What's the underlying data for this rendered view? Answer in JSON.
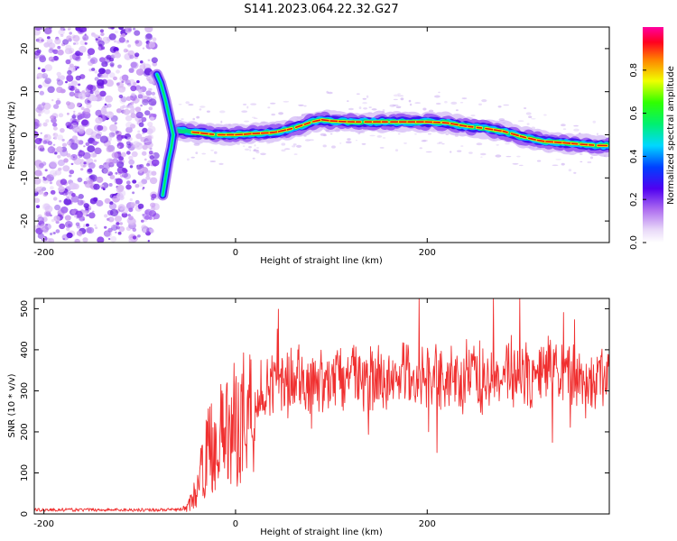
{
  "title": "S141.2023.064.22.32.G27",
  "chart_data": [
    {
      "type": "heatmap",
      "xlabel": "Height of straight line (km)",
      "ylabel": "Frequency (Hz)",
      "xlim": [
        -210,
        390
      ],
      "ylim": [
        -25,
        25
      ],
      "xticks": [
        "-200",
        "0",
        "200"
      ],
      "yticks": [
        "-20",
        "-10",
        "0",
        "10",
        "20"
      ],
      "colorbar": {
        "label": "Normalized spectral amplitude",
        "range": [
          0,
          1
        ],
        "ticks": [
          "0.0",
          "0.2",
          "0.4",
          "0.6",
          "0.8"
        ]
      },
      "ridge": {
        "x": [
          -60,
          -40,
          -20,
          0,
          20,
          40,
          60,
          80,
          90,
          100,
          120,
          140,
          160,
          180,
          200,
          220,
          240,
          260,
          280,
          300,
          320,
          340,
          360,
          380,
          390
        ],
        "y": [
          1,
          0.5,
          0,
          0,
          0.3,
          0.5,
          1.5,
          3,
          3.5,
          3.2,
          3.0,
          3.0,
          3.0,
          3.0,
          3.0,
          2.8,
          2.0,
          1.5,
          0.8,
          -0.5,
          -1.5,
          -1.8,
          -2.2,
          -2.5,
          -2.5
        ]
      },
      "branches": {
        "upper_x": [
          -82,
          -78,
          -73,
          -70,
          -67,
          -65
        ],
        "upper_y": [
          14,
          12,
          8,
          5,
          2,
          0
        ],
        "lower_x": [
          -76,
          -73,
          -70,
          -67,
          -65
        ],
        "lower_y": [
          -14,
          -10,
          -6,
          -3,
          0
        ]
      }
    },
    {
      "type": "line",
      "xlabel": "Height of straight line (km)",
      "ylabel": "SNR (10 * v/v)",
      "xlim": [
        -210,
        390
      ],
      "ylim": [
        0,
        525
      ],
      "xticks": [
        "-200",
        "0",
        "200"
      ],
      "yticks": [
        "0",
        "100",
        "200",
        "300",
        "400",
        "500"
      ],
      "envelope": {
        "x": [
          -210,
          -60,
          -50,
          -40,
          -30,
          -20,
          -10,
          0,
          10,
          20,
          30,
          40,
          60,
          80,
          100,
          120,
          150,
          180,
          200,
          230,
          260,
          290,
          300,
          320,
          340,
          360,
          390
        ],
        "y": [
          10,
          10,
          15,
          60,
          150,
          180,
          200,
          220,
          250,
          270,
          290,
          310,
          320,
          330,
          325,
          330,
          335,
          340,
          340,
          330,
          335,
          345,
          330,
          350,
          345,
          320,
          330
        ]
      },
      "color": "#f03030"
    }
  ]
}
